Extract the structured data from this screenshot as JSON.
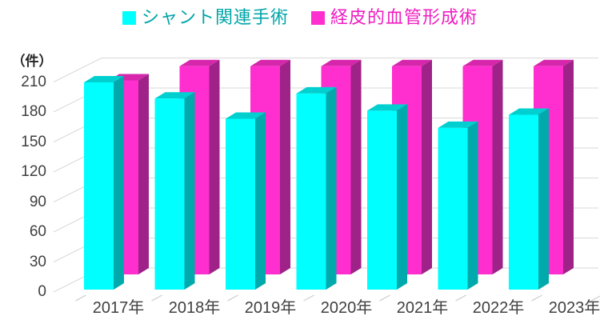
{
  "legend": {
    "items": [
      {
        "label": "シャント関連手術",
        "swatch_color": "#00FFFF",
        "text_color": "#00A5A8"
      },
      {
        "label": "経皮的血管形成術",
        "swatch_color": "#FF2ECF",
        "text_color": "#EF1CC1"
      }
    ]
  },
  "y_axis": {
    "unit_label": "（件）",
    "tick_color": "#404040"
  },
  "colors": {
    "gridline": "#D9D9D9",
    "axis_tick": "#C9C9C9",
    "axis_text": "#404040"
  },
  "chart_data": {
    "type": "bar",
    "subtype": "3d-clustered-column",
    "title": "",
    "xlabel": "",
    "ylabel": "（件）",
    "categories": [
      "2017年",
      "2018年",
      "2019年",
      "2020年",
      "2021年",
      "2022年",
      "2023年"
    ],
    "series": [
      {
        "name": "シャント関連手術",
        "color": "#00FFFF",
        "color_top": "#00CFCF",
        "color_side": "#00A9AC",
        "values": [
          205,
          189,
          169,
          194,
          177,
          160,
          173
        ]
      },
      {
        "name": "経皮的血管形成術",
        "color": "#FF2ECF",
        "color_top": "#D626AB",
        "color_side": "#9E2287",
        "values": [
          192,
          206,
          206,
          206,
          206,
          206,
          206
        ]
      }
    ],
    "ylim": [
      0,
      210
    ],
    "yticks": [
      0,
      30,
      60,
      90,
      120,
      150,
      180,
      210
    ],
    "grid": true,
    "legend_position": "top"
  }
}
